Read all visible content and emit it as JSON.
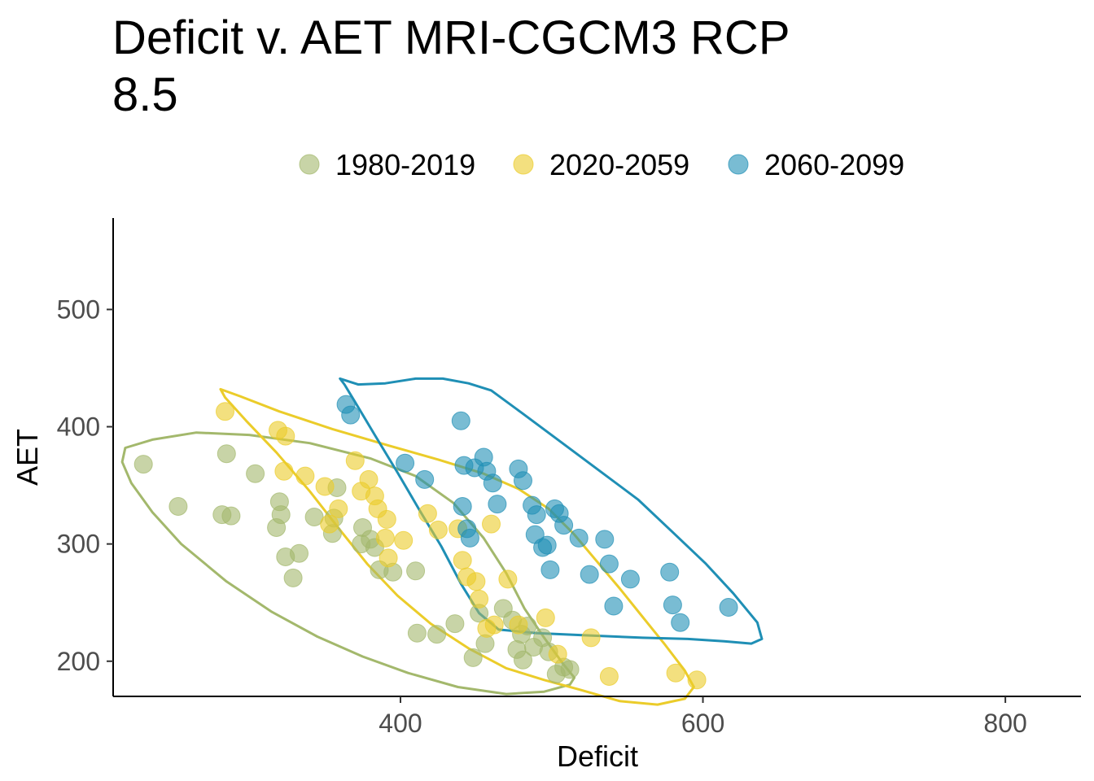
{
  "chart_data": {
    "type": "scatter",
    "title_lines": [
      "Deficit v. AET MRI-CGCM3 RCP",
      "8.5"
    ],
    "xlabel": "Deficit",
    "ylabel": "AET",
    "xlim": [
      210,
      850
    ],
    "ylim": [
      170,
      578
    ],
    "xticks": [
      400,
      600,
      800
    ],
    "yticks": [
      200,
      300,
      400,
      500
    ],
    "grid": false,
    "legend_position": "top",
    "series": [
      {
        "name": "1980-2019",
        "color": "#a3b86c",
        "points": [
          [
            230,
            368
          ],
          [
            253,
            332
          ],
          [
            282,
            325
          ],
          [
            285,
            377
          ],
          [
            288,
            324
          ],
          [
            304,
            360
          ],
          [
            318,
            314
          ],
          [
            320,
            336
          ],
          [
            321,
            325
          ],
          [
            324,
            289
          ],
          [
            329,
            271
          ],
          [
            333,
            292
          ],
          [
            343,
            323
          ],
          [
            355,
            309
          ],
          [
            358,
            348
          ],
          [
            356,
            322
          ],
          [
            374,
            300
          ],
          [
            375,
            314
          ],
          [
            380,
            304
          ],
          [
            383,
            297
          ],
          [
            386,
            278
          ],
          [
            395,
            276
          ],
          [
            410,
            277
          ],
          [
            411,
            224
          ],
          [
            424,
            223
          ],
          [
            436,
            232
          ],
          [
            448,
            203
          ],
          [
            452,
            241
          ],
          [
            456,
            215
          ],
          [
            468,
            245
          ],
          [
            474,
            235
          ],
          [
            477,
            210
          ],
          [
            480,
            223
          ],
          [
            481,
            201
          ],
          [
            484,
            230
          ],
          [
            488,
            212
          ],
          [
            494,
            220
          ],
          [
            498,
            208
          ],
          [
            503,
            189
          ],
          [
            508,
            195
          ],
          [
            512,
            193
          ]
        ],
        "ellipse": [
          [
            218,
            382
          ],
          [
            236,
            389
          ],
          [
            265,
            395
          ],
          [
            300,
            393
          ],
          [
            340,
            386
          ],
          [
            380,
            373
          ],
          [
            410,
            358
          ],
          [
            435,
            335
          ],
          [
            455,
            305
          ],
          [
            470,
            275
          ],
          [
            482,
            245
          ],
          [
            495,
            220
          ],
          [
            508,
            197
          ],
          [
            515,
            186
          ],
          [
            512,
            180
          ],
          [
            495,
            174
          ],
          [
            470,
            172
          ],
          [
            438,
            178
          ],
          [
            405,
            190
          ],
          [
            375,
            204
          ],
          [
            345,
            221
          ],
          [
            315,
            242
          ],
          [
            285,
            268
          ],
          [
            255,
            300
          ],
          [
            236,
            327
          ],
          [
            222,
            352
          ],
          [
            216,
            370
          ],
          [
            218,
            382
          ]
        ]
      },
      {
        "name": "2020-2059",
        "color": "#ebcc2a",
        "points": [
          [
            284,
            413
          ],
          [
            319,
            397
          ],
          [
            324,
            392
          ],
          [
            323,
            362
          ],
          [
            337,
            358
          ],
          [
            350,
            349
          ],
          [
            353,
            317
          ],
          [
            359,
            330
          ],
          [
            370,
            371
          ],
          [
            374,
            345
          ],
          [
            379,
            355
          ],
          [
            383,
            341
          ],
          [
            385,
            330
          ],
          [
            391,
            321
          ],
          [
            390,
            305
          ],
          [
            392,
            288
          ],
          [
            402,
            303
          ],
          [
            418,
            326
          ],
          [
            425,
            312
          ],
          [
            438,
            313
          ],
          [
            441,
            286
          ],
          [
            444,
            272
          ],
          [
            450,
            268
          ],
          [
            452,
            253
          ],
          [
            457,
            228
          ],
          [
            462,
            231
          ],
          [
            460,
            317
          ],
          [
            471,
            270
          ],
          [
            478,
            231
          ],
          [
            496,
            237
          ],
          [
            504,
            206
          ],
          [
            526,
            220
          ],
          [
            538,
            187
          ],
          [
            582,
            190
          ],
          [
            596,
            184
          ]
        ],
        "ellipse": [
          [
            281,
            432
          ],
          [
            294,
            426
          ],
          [
            320,
            413
          ],
          [
            355,
            398
          ],
          [
            392,
            384
          ],
          [
            425,
            372
          ],
          [
            455,
            360
          ],
          [
            478,
            347
          ],
          [
            498,
            330
          ],
          [
            515,
            308
          ],
          [
            530,
            285
          ],
          [
            545,
            262
          ],
          [
            560,
            238
          ],
          [
            575,
            214
          ],
          [
            588,
            192
          ],
          [
            594,
            178
          ],
          [
            588,
            168
          ],
          [
            570,
            163
          ],
          [
            545,
            166
          ],
          [
            518,
            176
          ],
          [
            495,
            184
          ],
          [
            470,
            194
          ],
          [
            445,
            211
          ],
          [
            420,
            232
          ],
          [
            398,
            256
          ],
          [
            378,
            283
          ],
          [
            360,
            312
          ],
          [
            340,
            345
          ],
          [
            318,
            378
          ],
          [
            298,
            405
          ],
          [
            284,
            425
          ],
          [
            281,
            432
          ]
        ]
      },
      {
        "name": "2060-2099",
        "color": "#1f8fb5",
        "points": [
          [
            364,
            419
          ],
          [
            367,
            410
          ],
          [
            403,
            369
          ],
          [
            416,
            355
          ],
          [
            440,
            405
          ],
          [
            442,
            367
          ],
          [
            441,
            332
          ],
          [
            444,
            313
          ],
          [
            446,
            305
          ],
          [
            449,
            365
          ],
          [
            455,
            374
          ],
          [
            457,
            362
          ],
          [
            461,
            352
          ],
          [
            464,
            334
          ],
          [
            478,
            364
          ],
          [
            481,
            354
          ],
          [
            487,
            333
          ],
          [
            489,
            308
          ],
          [
            490,
            325
          ],
          [
            494,
            297
          ],
          [
            497,
            299
          ],
          [
            499,
            278
          ],
          [
            502,
            330
          ],
          [
            505,
            326
          ],
          [
            508,
            316
          ],
          [
            518,
            305
          ],
          [
            525,
            274
          ],
          [
            535,
            304
          ],
          [
            538,
            283
          ],
          [
            541,
            247
          ],
          [
            552,
            270
          ],
          [
            578,
            276
          ],
          [
            580,
            248
          ],
          [
            585,
            233
          ],
          [
            617,
            246
          ]
        ],
        "ellipse": [
          [
            360,
            441
          ],
          [
            372,
            436
          ],
          [
            390,
            437
          ],
          [
            410,
            441
          ],
          [
            428,
            441
          ],
          [
            445,
            437
          ],
          [
            460,
            431
          ],
          [
            480,
            412
          ],
          [
            505,
            388
          ],
          [
            530,
            364
          ],
          [
            557,
            338
          ],
          [
            580,
            310
          ],
          [
            602,
            283
          ],
          [
            620,
            258
          ],
          [
            636,
            233
          ],
          [
            639,
            219
          ],
          [
            632,
            215
          ],
          [
            614,
            217
          ],
          [
            590,
            219
          ],
          [
            560,
            220
          ],
          [
            525,
            222
          ],
          [
            490,
            224
          ],
          [
            465,
            227
          ],
          [
            452,
            241
          ],
          [
            440,
            266
          ],
          [
            427,
            298
          ],
          [
            413,
            328
          ],
          [
            398,
            361
          ],
          [
            383,
            393
          ],
          [
            370,
            421
          ],
          [
            363,
            436
          ],
          [
            360,
            441
          ]
        ]
      }
    ]
  }
}
